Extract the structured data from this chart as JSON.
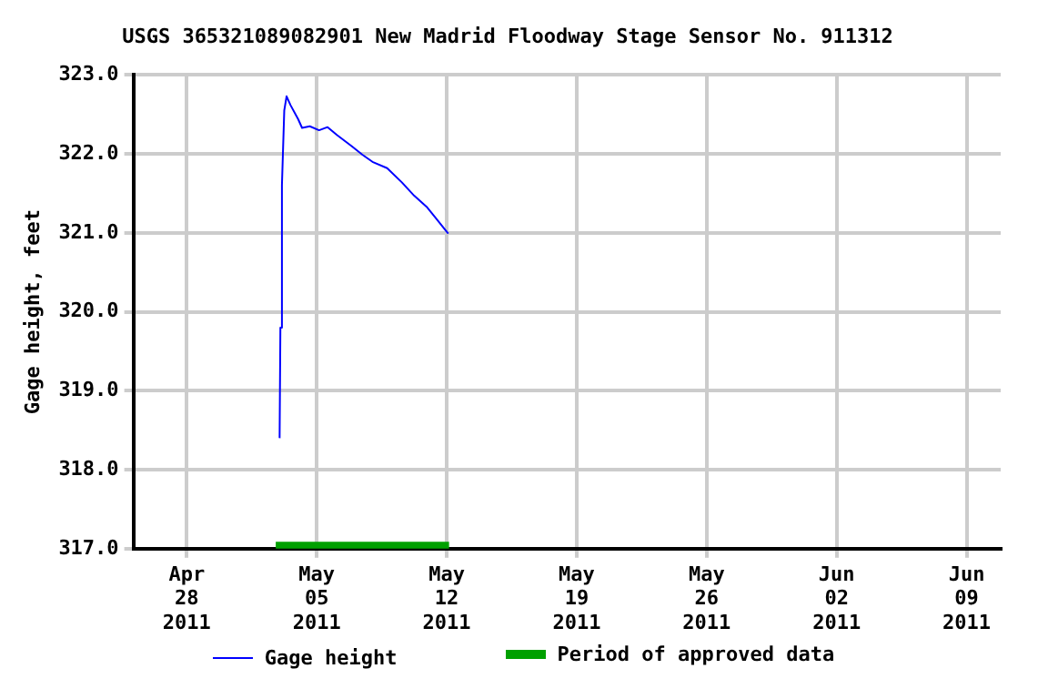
{
  "chart_data": {
    "type": "line",
    "title": "USGS 365321089082901 New Madrid Floodway Stage Sensor No. 911312",
    "ylabel": "Gage height, feet",
    "series": [
      {
        "name": "Gage height",
        "color": "#0000ff",
        "x": [
          "2011-05-03T00:00",
          "2011-05-03T01:00",
          "2011-05-03T03:00",
          "2011-05-03T06:00",
          "2011-05-03T09:00",
          "2011-05-03T14:00",
          "2011-05-04T00:00",
          "2011-05-04T05:00",
          "2011-05-04T15:00",
          "2011-05-05T03:00",
          "2011-05-05T14:00",
          "2011-05-06T02:00",
          "2011-05-06T21:00",
          "2011-05-07T11:00",
          "2011-05-08T00:00",
          "2011-05-08T19:00",
          "2011-05-09T14:00",
          "2011-05-10T06:00",
          "2011-05-10T22:00",
          "2011-05-11T12:00",
          "2011-05-12T02:00"
        ],
        "values": [
          318.4,
          319.8,
          321.6,
          322.55,
          322.73,
          322.62,
          322.44,
          322.33,
          322.35,
          322.3,
          322.34,
          322.24,
          322.1,
          321.99,
          321.9,
          321.82,
          321.64,
          321.47,
          321.33,
          321.16,
          320.99
        ]
      },
      {
        "name": "Period of approved data",
        "type": "step",
        "color": "#00a000",
        "x": [
          "2011-05-02T19:00",
          "2011-05-12T03:00"
        ],
        "values": [
          317.03,
          317.03
        ]
      }
    ],
    "xlim": [
      "2011-04-25T03:00",
      "2011-06-10T20:00"
    ],
    "xticks": [
      {
        "value": "2011-04-28",
        "label": "Apr 28 2011"
      },
      {
        "value": "2011-05-05",
        "label": "May 05 2011"
      },
      {
        "value": "2011-05-12",
        "label": "May 12 2011"
      },
      {
        "value": "2011-05-19",
        "label": "May 19 2011"
      },
      {
        "value": "2011-05-26",
        "label": "May 26 2011"
      },
      {
        "value": "2011-06-02",
        "label": "Jun 02 2011"
      },
      {
        "value": "2011-06-09",
        "label": "Jun 09 2011"
      }
    ],
    "ylim": [
      317,
      323
    ],
    "yticks": [
      {
        "value": 317,
        "label": "317.0"
      },
      {
        "value": 318,
        "label": "318.0"
      },
      {
        "value": 319,
        "label": "319.0"
      },
      {
        "value": 320,
        "label": "320.0"
      },
      {
        "value": 321,
        "label": "321.0"
      },
      {
        "value": 322,
        "label": "322.0"
      },
      {
        "value": 323,
        "label": "323.0"
      }
    ],
    "grid": true,
    "legend": "bottom",
    "marker": "none",
    "line_style": "solid"
  }
}
